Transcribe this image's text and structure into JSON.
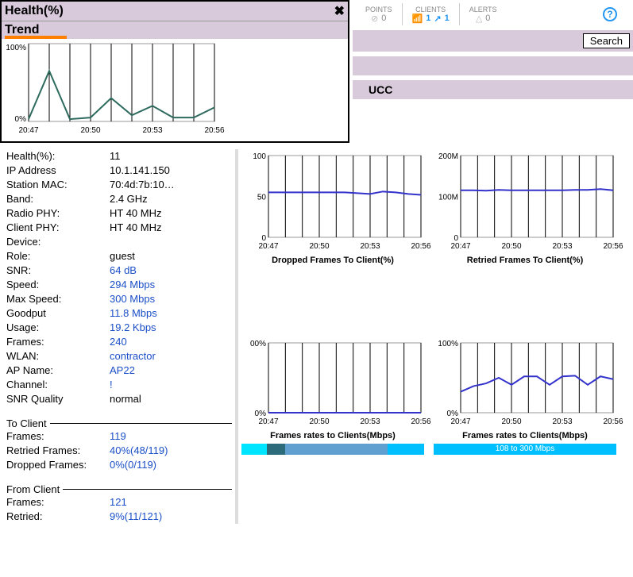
{
  "health_panel": {
    "title": "Health(%)",
    "trend_label": "Trend",
    "trend_chart": {
      "type": "line",
      "ylim": [
        0,
        100
      ],
      "ylabels": [
        "0%",
        "100%"
      ],
      "xlabels": [
        "20:47",
        "20:50",
        "20:53",
        "20:56"
      ],
      "x": [
        0,
        1,
        2,
        3,
        4,
        5,
        6,
        7,
        8,
        9
      ],
      "y": [
        3,
        65,
        3,
        5,
        30,
        8,
        20,
        5,
        5,
        18
      ],
      "line_color": "#2e6b5e",
      "grid_color": "#000000",
      "background_color": "#ffffff",
      "axis_fontsize": 10
    }
  },
  "top_stats": {
    "points": {
      "label": "POINTS",
      "value": "0"
    },
    "clients": {
      "label": "CLIENTS",
      "wifi": "1",
      "wired": "1"
    },
    "alerts": {
      "label": "ALERTS",
      "value": "0"
    }
  },
  "search_button": "Search",
  "ucc_label": "UCC",
  "details": {
    "rows": [
      {
        "label": "Health(%):",
        "value": "11",
        "link": false
      },
      {
        "label": "IP Address",
        "value": "10.1.141.150",
        "link": false
      },
      {
        "label": "Station MAC:",
        "value": "70:4d:7b:10…",
        "link": false
      },
      {
        "label": "Band:",
        "value": "2.4 GHz",
        "link": false
      },
      {
        "label": "Radio PHY:",
        "value": "HT 40 MHz",
        "link": false
      },
      {
        "label": "Client PHY:",
        "value": "HT 40 MHz",
        "link": false
      },
      {
        "label": "Device:",
        "value": "",
        "link": false
      },
      {
        "label": "Role:",
        "value": "guest",
        "link": false
      },
      {
        "label": "SNR:",
        "value": "64 dB",
        "link": true
      },
      {
        "label": "Speed:",
        "value": "294 Mbps",
        "link": true
      },
      {
        "label": "Max Speed:",
        "value": "300 Mbps",
        "link": true
      },
      {
        "label": "Goodput",
        "value": "11.8 Mbps",
        "link": true
      },
      {
        "label": "Usage:",
        "value": "19.2 Kbps",
        "link": true
      },
      {
        "label": "Frames:",
        "value": "240",
        "link": true
      },
      {
        "label": "WLAN:",
        "value": "contractor",
        "link": true
      },
      {
        "label": "AP Name:",
        "value": "AP22",
        "link": true
      },
      {
        "label": "Channel:",
        "value": "!",
        "link": true
      },
      {
        "label": "SNR Quality",
        "value": "normal",
        "link": false
      }
    ],
    "to_client_header": "To Client",
    "to_client": [
      {
        "label": "Frames:",
        "value": "119",
        "link": true
      },
      {
        "label": "Retried Frames:",
        "value": "40%(48/119)",
        "link": true
      },
      {
        "label": "Dropped Frames:",
        "value": "0%(0/119)",
        "link": true
      }
    ],
    "from_client_header": "From Client",
    "from_client": [
      {
        "label": "Frames:",
        "value": "121",
        "link": true
      },
      {
        "label": "Retried:",
        "value": "9%(11/121)",
        "link": true
      }
    ]
  },
  "mini_charts": {
    "xlabels": [
      "20:47",
      "20:50",
      "20:53",
      "20:56"
    ],
    "axis_fontsize": 10,
    "grid_color": "#000000",
    "line_color": "#3333cc",
    "dropped": {
      "title": "Dropped Frames To Client(%)",
      "ylim": [
        0,
        100
      ],
      "yticks": [
        0,
        50,
        100
      ],
      "ylabels": [
        "0",
        "50",
        "100"
      ],
      "y": [
        55,
        55,
        55,
        55,
        55,
        55,
        55,
        54,
        53,
        56,
        55,
        53,
        52
      ]
    },
    "retried": {
      "title": "Retried Frames To Client(%)",
      "ylim": [
        0,
        200
      ],
      "yticks": [
        0,
        100,
        200
      ],
      "ylabels": [
        "0",
        "100M",
        "200M"
      ],
      "y": [
        115,
        115,
        114,
        116,
        115,
        115,
        115,
        115,
        115,
        116,
        116,
        118,
        115
      ]
    },
    "rates_left": {
      "title": "Frames rates to Clients(Mbps)",
      "ylim": [
        0,
        100
      ],
      "yticks": [
        0,
        100
      ],
      "ylabels": [
        "0%",
        "00%"
      ],
      "y": [
        0,
        0,
        0,
        0,
        0,
        0,
        0,
        0,
        0,
        0,
        0,
        0,
        0
      ]
    },
    "rates_right": {
      "title": "Frames rates to Clients(Mbps)",
      "ylim": [
        0,
        100
      ],
      "yticks": [
        0,
        100
      ],
      "ylabels": [
        "0%",
        "100%"
      ],
      "y": [
        30,
        38,
        42,
        50,
        40,
        52,
        52,
        40,
        52,
        53,
        40,
        52,
        48
      ]
    },
    "rate_bar_left": {
      "segments": [
        {
          "width": 14,
          "color": "#00e5ff",
          "label": ""
        },
        {
          "width": 10,
          "color": "#2b6b7a",
          "label": ""
        },
        {
          "width": 56,
          "color": "#5fa0d0",
          "label": ""
        },
        {
          "width": 20,
          "color": "#00bfff",
          "label": ""
        }
      ]
    },
    "rate_bar_right": {
      "segments": [
        {
          "width": 100,
          "color": "#00bfff",
          "label": "108 to 300 Mbps"
        }
      ]
    }
  }
}
